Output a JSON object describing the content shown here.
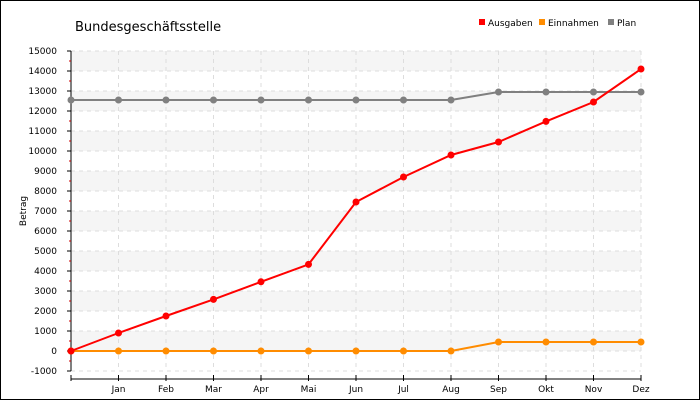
{
  "chart_data": {
    "type": "line",
    "title": "Bundesgeschäftsstelle",
    "ylabel": "Betrag",
    "xlabel": "",
    "x_ticks": [
      "",
      "Jan",
      "Feb",
      "Mar",
      "Apr",
      "Mai",
      "Jun",
      "Jul",
      "Aug",
      "Sep",
      "Okt",
      "Nov",
      "Dez"
    ],
    "ylim": [
      -1000,
      15000
    ],
    "y_ticks": [
      -1000,
      0,
      1000,
      2000,
      3000,
      4000,
      5000,
      6000,
      7000,
      8000,
      9000,
      10000,
      11000,
      12000,
      13000,
      14000,
      15000
    ],
    "grid": true,
    "legend_position": "top-right",
    "series": [
      {
        "name": "Ausgaben",
        "color": "#ff0000",
        "values": [
          0,
          900,
          1750,
          2580,
          3460,
          4330,
          7450,
          8700,
          9800,
          10450,
          11480,
          12450,
          14100
        ]
      },
      {
        "name": "Einnahmen",
        "color": "#ff8c00",
        "values": [
          0,
          0,
          0,
          0,
          0,
          0,
          0,
          0,
          0,
          450,
          450,
          450,
          450
        ]
      },
      {
        "name": "Plan",
        "color": "#808080",
        "values": [
          12550,
          12550,
          12550,
          12550,
          12550,
          12550,
          12550,
          12550,
          12550,
          12950,
          12950,
          12950,
          12950
        ]
      }
    ]
  }
}
